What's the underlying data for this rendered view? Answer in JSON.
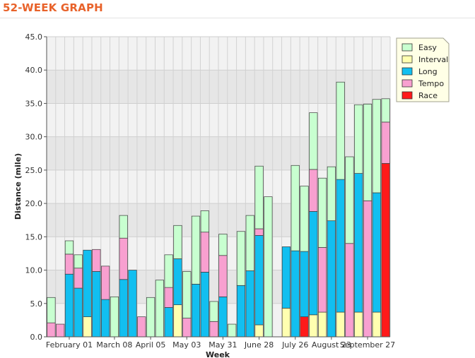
{
  "header": {
    "title": "52-WEEK GRAPH"
  },
  "chart_data": {
    "type": "bar",
    "stacked": true,
    "xlabel": "Week",
    "ylabel": "Distance (mile)",
    "ylim": [
      0,
      45
    ],
    "yticks": [
      "0.0",
      "5.0",
      "10.0",
      "15.0",
      "20.0",
      "25.0",
      "30.0",
      "35.0",
      "40.0",
      "45.0"
    ],
    "x_tick_labels": [
      {
        "index": 2,
        "label": "February 01"
      },
      {
        "index": 7,
        "label": "March 08"
      },
      {
        "index": 11,
        "label": "April 05"
      },
      {
        "index": 15,
        "label": "May 03"
      },
      {
        "index": 19,
        "label": "May 31"
      },
      {
        "index": 23,
        "label": "June 28"
      },
      {
        "index": 27,
        "label": "July 26"
      },
      {
        "index": 31,
        "label": "August 23"
      },
      {
        "index": 35,
        "label": "September 27"
      }
    ],
    "grid": true,
    "legend_position": "top-right",
    "series": [
      {
        "name": "Race",
        "color": "#ff1a1a",
        "values": [
          0,
          0,
          0,
          0,
          0,
          0,
          0,
          0,
          0,
          0,
          0,
          0,
          0,
          0,
          0,
          0,
          0,
          0,
          0,
          0,
          0,
          0,
          0,
          0,
          0,
          0,
          0,
          0,
          3.0,
          0,
          0,
          0,
          0,
          0,
          0,
          0,
          0,
          26.0
        ]
      },
      {
        "name": "Interval",
        "color": "#ffffb0",
        "values": [
          0,
          0,
          0,
          0,
          3.0,
          0,
          0,
          0,
          0,
          0,
          0,
          0,
          0,
          0,
          4.8,
          0,
          0,
          0,
          0,
          0,
          0,
          0,
          0,
          1.8,
          0,
          0,
          4.3,
          0,
          0,
          3.3,
          3.7,
          0,
          3.7,
          0,
          3.7,
          0,
          3.7,
          0
        ]
      },
      {
        "name": "Long",
        "color": "#12bff0",
        "values": [
          0,
          0,
          9.4,
          7.3,
          10.0,
          9.8,
          5.6,
          0,
          8.6,
          10.0,
          0,
          0,
          0,
          4.4,
          6.9,
          0,
          7.9,
          9.7,
          0,
          6.0,
          0,
          7.7,
          9.9,
          13.4,
          0,
          0,
          9.2,
          12.9,
          9.8,
          15.5,
          0,
          17.4,
          19.9,
          0,
          20.8,
          0,
          17.9,
          0
        ]
      },
      {
        "name": "Tempo",
        "color": "#f8a0d0",
        "values": [
          2.1,
          1.9,
          3.0,
          3.0,
          0,
          3.3,
          5.0,
          0,
          6.2,
          0,
          3.0,
          0,
          0,
          3.0,
          0,
          2.8,
          0,
          6.0,
          2.3,
          6.2,
          0,
          0,
          0,
          1.0,
          0,
          0,
          0,
          0,
          0,
          6.3,
          9.7,
          0,
          0,
          14.0,
          0,
          20.4,
          0,
          6.2
        ]
      },
      {
        "name": "Easy",
        "color": "#c8ffd0",
        "values": [
          3.8,
          0,
          2.0,
          2.0,
          0,
          0,
          0,
          6.0,
          3.4,
          0,
          0,
          5.9,
          8.5,
          4.9,
          5.0,
          7.0,
          10.2,
          3.2,
          3.0,
          3.2,
          1.9,
          8.1,
          8.3,
          9.4,
          21.0,
          0,
          0,
          12.8,
          9.8,
          8.5,
          10.4,
          8.1,
          14.6,
          13.0,
          10.3,
          14.5,
          14.0,
          3.5
        ]
      }
    ]
  },
  "legend": {
    "items": [
      {
        "name": "Easy",
        "color": "#c8ffd0"
      },
      {
        "name": "Interval",
        "color": "#ffffb0"
      },
      {
        "name": "Long",
        "color": "#12bff0"
      },
      {
        "name": "Tempo",
        "color": "#f8a0d0"
      },
      {
        "name": "Race",
        "color": "#ff1a1a"
      }
    ]
  }
}
